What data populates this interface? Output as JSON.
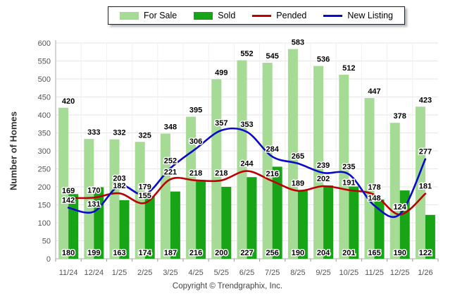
{
  "chart_data": {
    "type": "bar+line",
    "title": "",
    "xlabel": "",
    "ylabel": "Number of Homes",
    "ylim": [
      0,
      600
    ],
    "ytick_step": 50,
    "grid": true,
    "legend_position": "top",
    "categories": [
      "11/24",
      "12/24",
      "1/25",
      "2/25",
      "3/25",
      "4/25",
      "5/25",
      "6/25",
      "7/25",
      "8/25",
      "9/25",
      "10/25",
      "11/25",
      "12/25",
      "1/26"
    ],
    "series": [
      {
        "name": "For Sale",
        "type": "bar",
        "color": "#A5DB94",
        "values": [
          420,
          333,
          332,
          325,
          348,
          395,
          499,
          552,
          545,
          583,
          536,
          512,
          447,
          378,
          423
        ]
      },
      {
        "name": "Sold",
        "type": "bar",
        "color": "#17A517",
        "values": [
          180,
          199,
          163,
          174,
          187,
          216,
          200,
          227,
          256,
          190,
          204,
          201,
          165,
          190,
          122
        ]
      },
      {
        "name": "Pended",
        "type": "line",
        "color": "#BE0000",
        "values": [
          169,
          170,
          182,
          155,
          221,
          218,
          218,
          244,
          216,
          189,
          202,
          191,
          178,
          123,
          181
        ]
      },
      {
        "name": "New Listing",
        "type": "line",
        "color": "#0A0ACC",
        "values": [
          142,
          131,
          203,
          179,
          252,
          306,
          357,
          353,
          284,
          265,
          239,
          235,
          148,
          124,
          277
        ]
      }
    ],
    "yticks": [
      0,
      50,
      100,
      150,
      200,
      250,
      300,
      350,
      400,
      450,
      500,
      550,
      600
    ]
  },
  "footer": {
    "copyright": "Copyright © Trendgraphix, Inc."
  }
}
